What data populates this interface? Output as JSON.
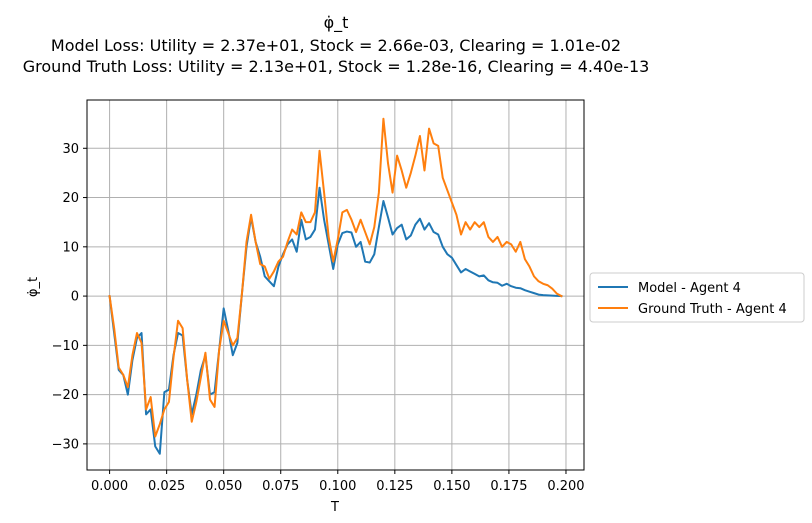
{
  "chart_data": {
    "type": "line",
    "title": "φ̇_t",
    "subtitle_lines": [
      "Model Loss: Utility = 2.37e+01, Stock = 2.66e-03, Clearing = 1.01e-02",
      "Ground Truth Loss: Utility = 2.13e+01, Stock = 1.28e-16, Clearing = 4.40e-13"
    ],
    "xlabel": "T",
    "ylabel": "φ̇_t",
    "xlim": [
      -0.0099,
      0.2079
    ],
    "ylim": [
      -35.3,
      39.8
    ],
    "grid": true,
    "legend_position": "outside-right",
    "xticks": [
      "0.000",
      "0.025",
      "0.050",
      "0.075",
      "0.100",
      "0.125",
      "0.150",
      "0.175",
      "0.200"
    ],
    "xtick_values": [
      0.0,
      0.025,
      0.05,
      0.075,
      0.1,
      0.125,
      0.15,
      0.175,
      0.2
    ],
    "yticks": [
      "−30",
      "−20",
      "−10",
      "0",
      "10",
      "20",
      "30"
    ],
    "ytick_values": [
      -30,
      -20,
      -10,
      0,
      10,
      20,
      30
    ],
    "series": [
      {
        "name": "Model - Agent 4",
        "color": "#1f77b4",
        "x": [
          0.0,
          0.002,
          0.004,
          0.006,
          0.008,
          0.01,
          0.012,
          0.014,
          0.016,
          0.018,
          0.02,
          0.022,
          0.024,
          0.026,
          0.028,
          0.03,
          0.032,
          0.034,
          0.036,
          0.038,
          0.04,
          0.042,
          0.044,
          0.046,
          0.048,
          0.05,
          0.052,
          0.054,
          0.056,
          0.058,
          0.06,
          0.062,
          0.064,
          0.066,
          0.068,
          0.07,
          0.072,
          0.074,
          0.076,
          0.078,
          0.08,
          0.082,
          0.084,
          0.086,
          0.088,
          0.09,
          0.092,
          0.094,
          0.096,
          0.098,
          0.1,
          0.102,
          0.104,
          0.106,
          0.108,
          0.11,
          0.112,
          0.114,
          0.116,
          0.118,
          0.12,
          0.122,
          0.124,
          0.126,
          0.128,
          0.13,
          0.132,
          0.134,
          0.136,
          0.138,
          0.14,
          0.142,
          0.144,
          0.146,
          0.148,
          0.15,
          0.152,
          0.154,
          0.156,
          0.158,
          0.16,
          0.162,
          0.164,
          0.166,
          0.168,
          0.17,
          0.172,
          0.174,
          0.176,
          0.178,
          0.18,
          0.182,
          0.184,
          0.186,
          0.188,
          0.19,
          0.192,
          0.194,
          0.196,
          0.198
        ],
        "y": [
          0.0,
          -7.5,
          -15.0,
          -16.0,
          -20.0,
          -13.0,
          -8.5,
          -7.5,
          -24.0,
          -23.0,
          -30.5,
          -32.0,
          -19.5,
          -19.0,
          -12.0,
          -7.5,
          -8.0,
          -17.0,
          -24.0,
          -20.0,
          -15.0,
          -12.0,
          -20.0,
          -19.5,
          -11.0,
          -2.5,
          -7.0,
          -12.0,
          -9.5,
          0.5,
          10.0,
          16.0,
          11.0,
          8.0,
          4.0,
          3.0,
          2.0,
          6.0,
          8.5,
          10.5,
          11.5,
          9.0,
          15.5,
          11.5,
          12.0,
          13.5,
          22.0,
          15.5,
          10.5,
          5.5,
          10.5,
          12.8,
          13.1,
          12.9,
          10.0,
          11.0,
          7.0,
          6.8,
          8.5,
          14.0,
          19.3,
          16.0,
          12.5,
          13.8,
          14.5,
          11.5,
          12.3,
          14.5,
          15.7,
          13.5,
          14.8,
          13.0,
          12.5,
          10.0,
          8.5,
          7.8,
          6.3,
          4.8,
          5.5,
          5.0,
          4.5,
          4.0,
          4.2,
          3.2,
          2.8,
          2.7,
          2.1,
          2.5,
          2.0,
          1.7,
          1.6,
          1.2,
          0.9,
          0.6,
          0.3,
          0.2,
          0.15,
          0.1,
          0.05,
          0.0
        ]
      },
      {
        "name": "Ground Truth - Agent 4",
        "color": "#ff7f0e",
        "x": [
          0.0,
          0.002,
          0.004,
          0.006,
          0.008,
          0.01,
          0.012,
          0.014,
          0.016,
          0.018,
          0.02,
          0.022,
          0.024,
          0.026,
          0.028,
          0.03,
          0.032,
          0.034,
          0.036,
          0.038,
          0.04,
          0.042,
          0.044,
          0.046,
          0.048,
          0.05,
          0.052,
          0.054,
          0.056,
          0.058,
          0.06,
          0.062,
          0.064,
          0.066,
          0.068,
          0.07,
          0.072,
          0.074,
          0.076,
          0.078,
          0.08,
          0.082,
          0.084,
          0.086,
          0.088,
          0.09,
          0.092,
          0.094,
          0.096,
          0.098,
          0.1,
          0.102,
          0.104,
          0.106,
          0.108,
          0.11,
          0.112,
          0.114,
          0.116,
          0.118,
          0.12,
          0.122,
          0.124,
          0.126,
          0.128,
          0.13,
          0.132,
          0.134,
          0.136,
          0.138,
          0.14,
          0.142,
          0.144,
          0.146,
          0.148,
          0.15,
          0.152,
          0.154,
          0.156,
          0.158,
          0.16,
          0.162,
          0.164,
          0.166,
          0.168,
          0.17,
          0.172,
          0.174,
          0.176,
          0.178,
          0.18,
          0.182,
          0.184,
          0.186,
          0.188,
          0.19,
          0.192,
          0.194,
          0.196,
          0.198
        ],
        "y": [
          0.0,
          -6.5,
          -14.5,
          -16.0,
          -18.5,
          -12.0,
          -7.5,
          -9.5,
          -23.0,
          -20.5,
          -28.5,
          -26.0,
          -23.0,
          -21.5,
          -12.5,
          -5.0,
          -6.5,
          -17.0,
          -25.5,
          -21.5,
          -16.5,
          -11.5,
          -21.0,
          -22.5,
          -11.0,
          -5.0,
          -7.5,
          -10.0,
          -8.5,
          0.5,
          11.0,
          16.5,
          11.0,
          6.5,
          6.0,
          3.5,
          5.0,
          7.0,
          8.0,
          11.0,
          13.5,
          12.5,
          17.0,
          15.0,
          15.0,
          17.0,
          29.5,
          21.0,
          12.0,
          7.0,
          11.5,
          17.0,
          17.5,
          15.5,
          13.0,
          15.5,
          13.0,
          10.5,
          14.0,
          21.0,
          36.0,
          27.0,
          21.0,
          28.5,
          25.5,
          22.0,
          25.0,
          28.5,
          32.5,
          25.5,
          34.0,
          31.0,
          30.5,
          24.0,
          21.5,
          19.0,
          16.5,
          12.5,
          15.0,
          13.5,
          15.0,
          14.0,
          15.0,
          12.0,
          11.0,
          12.0,
          10.0,
          11.0,
          10.5,
          9.0,
          11.0,
          7.5,
          6.0,
          4.0,
          3.0,
          2.5,
          2.2,
          1.5,
          0.5,
          0.0
        ]
      }
    ]
  }
}
